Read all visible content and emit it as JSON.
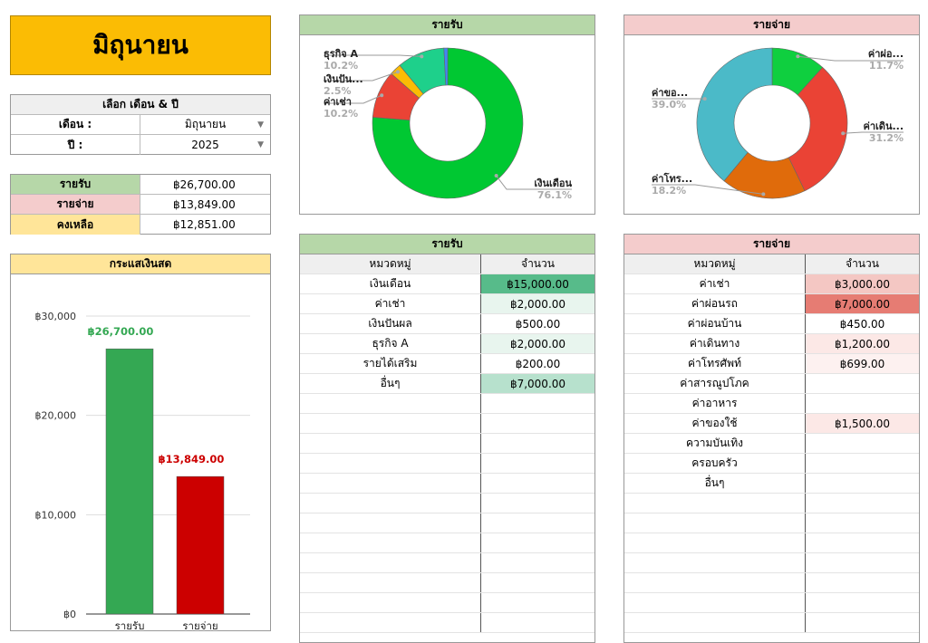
{
  "title": "มิถุนายน",
  "selector": {
    "header": "เลือก เดือน & ปี",
    "month_label": "เดือน :",
    "month_value": "มิถุนายน",
    "year_label": "ปี :",
    "year_value": "2025"
  },
  "summary": {
    "income_label": "รายรับ",
    "income_value": "฿26,700.00",
    "expense_label": "รายจ่าย",
    "expense_value": "฿13,849.00",
    "balance_label": "คงเหลือ",
    "balance_value": "฿12,851.00"
  },
  "colors": {
    "title_bg": "#fbbc04",
    "income_bg": "#b6d7a8",
    "expense_bg": "#f4cccc",
    "balance_bg": "#ffe599",
    "income_bar": "#34a853",
    "expense_bar": "#cc0000"
  },
  "cashflow": {
    "header": "กระแสเงินสด",
    "chart_data": {
      "type": "bar",
      "categories": [
        "รายรับ",
        "รายจ่าย"
      ],
      "values": [
        26700,
        13849
      ],
      "data_labels": [
        "฿26,700.00",
        "฿13,849.00"
      ],
      "yticks": [
        "฿0",
        "฿10,000",
        "฿20,000",
        "฿30,000"
      ],
      "ylim": [
        0,
        30000
      ],
      "colors": [
        "#34a853",
        "#cc0000"
      ]
    }
  },
  "income_pie": {
    "header": "รายรับ",
    "chart_data": {
      "type": "pie",
      "slices": [
        {
          "label": "เงินเดือน",
          "pct": "76.1%",
          "value": 76.1,
          "color": "#00c832"
        },
        {
          "label": "ค่าเช่า",
          "pct": "10.2%",
          "value": 10.2,
          "color": "#ea4335"
        },
        {
          "label": "เงินปัน...",
          "pct": "2.5%",
          "value": 2.5,
          "color": "#fbbc04"
        },
        {
          "label": "ธุรกิจ A",
          "pct": "10.2%",
          "value": 10.2,
          "color": "#1ed08b"
        },
        {
          "label": "",
          "pct": "",
          "value": 0.8,
          "color": "#4285f4"
        }
      ]
    }
  },
  "expense_pie": {
    "header": "รายจ่าย",
    "chart_data": {
      "type": "pie",
      "slices": [
        {
          "label": "ค่าผ่อ...",
          "pct": "11.7%",
          "value": 11.7,
          "color": "#0fcf3f"
        },
        {
          "label": "ค่าเดิน...",
          "pct": "31.2%",
          "value": 31.2,
          "color": "#ea4335"
        },
        {
          "label": "ค่าโทร...",
          "pct": "18.2%",
          "value": 18.2,
          "color": "#e06b0b"
        },
        {
          "label": "ค่าขอ...",
          "pct": "39.0%",
          "value": 39.0,
          "color": "#4bbac8"
        }
      ]
    }
  },
  "income_table": {
    "header": "รายรับ",
    "col1": "หมวดหมู่",
    "col2": "จำนวน",
    "rows": [
      {
        "cat": "เงินเดือน",
        "amt": "฿15,000.00",
        "bg": "#57bb8a"
      },
      {
        "cat": "ค่าเช่า",
        "amt": "฿2,000.00",
        "bg": "#e8f5ee"
      },
      {
        "cat": "เงินปันผล",
        "amt": "฿500.00",
        "bg": "#ffffff"
      },
      {
        "cat": "ธุรกิจ A",
        "amt": "฿2,000.00",
        "bg": "#e8f5ee"
      },
      {
        "cat": "รายได้เสริม",
        "amt": "฿200.00",
        "bg": "#ffffff"
      },
      {
        "cat": "อื่นๆ",
        "amt": "฿7,000.00",
        "bg": "#b7e1cd"
      }
    ]
  },
  "expense_table": {
    "header": "รายจ่าย",
    "col1": "หมวดหมู่",
    "col2": "จำนวน",
    "rows": [
      {
        "cat": "ค่าเช่า",
        "amt": "฿3,000.00",
        "bg": "#f4c7c3"
      },
      {
        "cat": "ค่าผ่อนรถ",
        "amt": "฿7,000.00",
        "bg": "#e67c73"
      },
      {
        "cat": "ค่าผ่อนบ้าน",
        "amt": "฿450.00",
        "bg": "#ffffff"
      },
      {
        "cat": "ค่าเดินทาง",
        "amt": "฿1,200.00",
        "bg": "#fce8e6"
      },
      {
        "cat": "ค่าโทรศัพท์",
        "amt": "฿699.00",
        "bg": "#fdf1f0"
      },
      {
        "cat": "ค่าสารณูปโภค",
        "amt": "",
        "bg": "#ffffff"
      },
      {
        "cat": "ค่าอาหาร",
        "amt": "",
        "bg": "#ffffff"
      },
      {
        "cat": "ค่าของใช้",
        "amt": "฿1,500.00",
        "bg": "#fce8e6"
      },
      {
        "cat": "ความบันเทิง",
        "amt": "",
        "bg": "#ffffff"
      },
      {
        "cat": "ครอบครัว",
        "amt": "",
        "bg": "#ffffff"
      },
      {
        "cat": "อื่นๆ",
        "amt": "",
        "bg": "#ffffff"
      }
    ]
  }
}
